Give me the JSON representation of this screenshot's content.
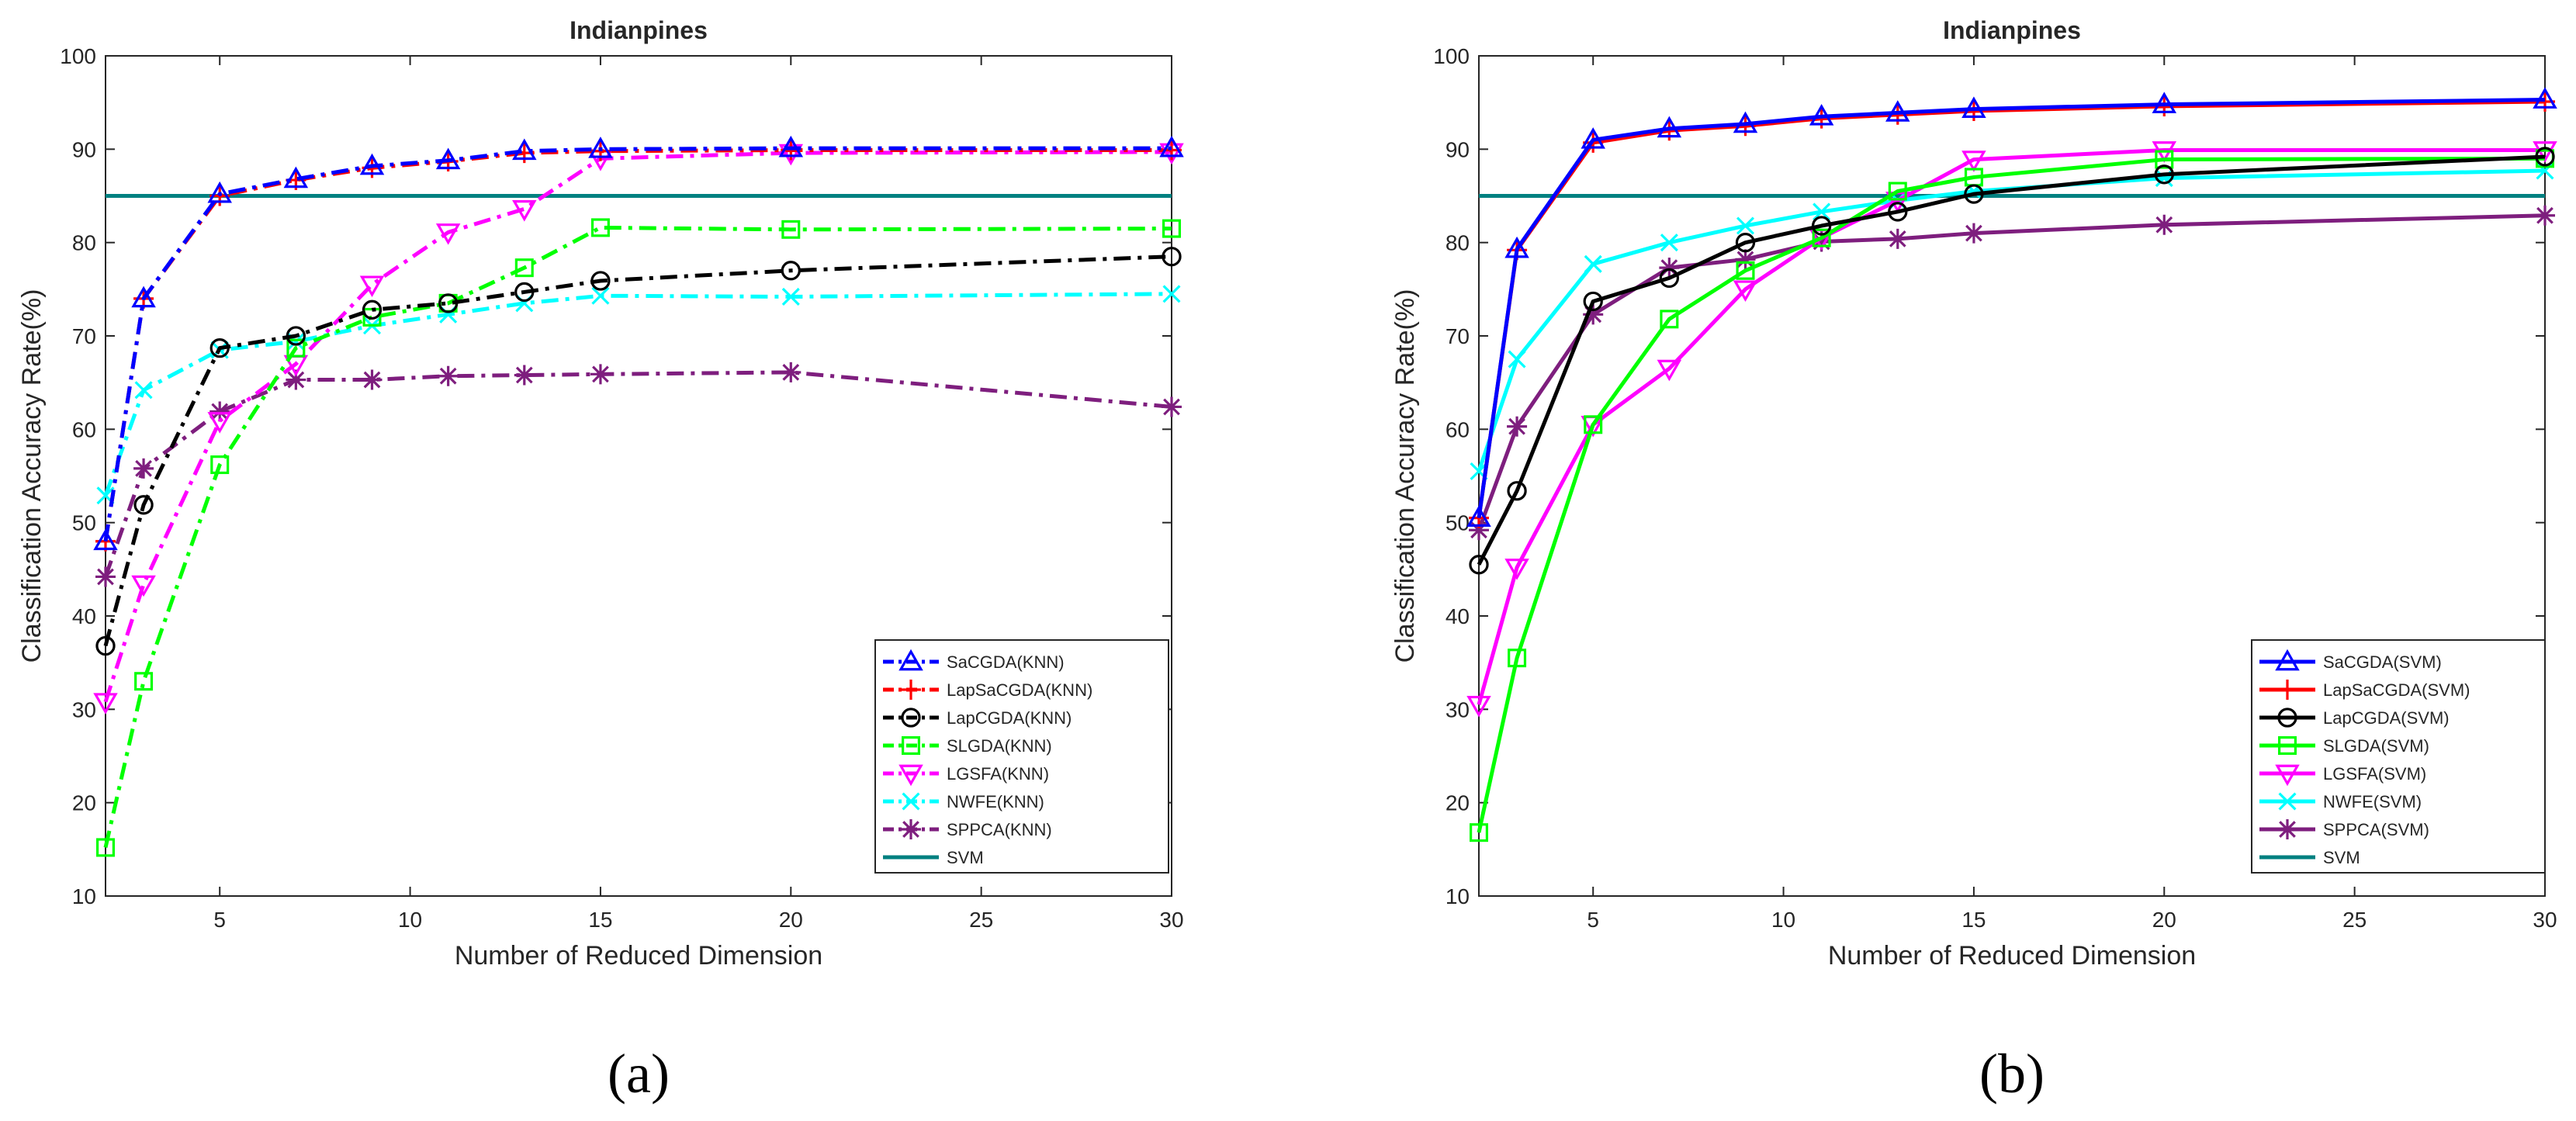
{
  "chart_data": [
    {
      "type": "line",
      "panel_label": "(a)",
      "title": "Indianpines",
      "xlabel": "Number of Reduced Dimension",
      "ylabel": "Classification Accuracy Rate(%)",
      "xlim": [
        2,
        30
      ],
      "ylim": [
        10,
        100
      ],
      "xticks": [
        5,
        10,
        15,
        20,
        25,
        30
      ],
      "yticks": [
        10,
        20,
        30,
        40,
        50,
        60,
        70,
        80,
        90,
        100
      ],
      "grid": false,
      "legend_position": "bottom-right",
      "series": [
        {
          "name": "SaCGDA(KNN)",
          "color": "#0000ff",
          "marker": "triangle-up",
          "line": "dashdot",
          "x": [
            2,
            3,
            5,
            7,
            9,
            11,
            13,
            15,
            20,
            30
          ],
          "y": [
            48,
            74,
            85.2,
            86.8,
            88.2,
            88.8,
            89.8,
            90,
            90.1,
            90.1
          ]
        },
        {
          "name": "LapSaCGDA(KNN)",
          "color": "#ff0000",
          "marker": "plus",
          "line": "dashdot",
          "x": [
            2,
            3,
            5,
            7,
            9,
            11,
            13,
            15,
            20,
            30
          ],
          "y": [
            48,
            74,
            85,
            86.7,
            88,
            88.7,
            89.6,
            89.8,
            89.9,
            89.9
          ]
        },
        {
          "name": "LapCGDA(KNN)",
          "color": "#000000",
          "marker": "circle",
          "line": "dashdot",
          "x": [
            2,
            3,
            5,
            7,
            9,
            11,
            13,
            15,
            20,
            30
          ],
          "y": [
            36.8,
            51.9,
            68.7,
            70,
            72.8,
            73.5,
            74.7,
            75.9,
            77,
            78.5
          ]
        },
        {
          "name": "SLGDA(KNN)",
          "color": "#00ff00",
          "marker": "square",
          "line": "dashdot",
          "x": [
            2,
            3,
            5,
            7,
            9,
            11,
            13,
            15,
            20,
            30
          ],
          "y": [
            15.2,
            33,
            56.2,
            68.7,
            72,
            73.5,
            77.3,
            81.6,
            81.4,
            81.5
          ]
        },
        {
          "name": "LGSFA(KNN)",
          "color": "#ff00ff",
          "marker": "triangle-down",
          "line": "dashdot",
          "x": [
            2,
            3,
            5,
            7,
            9,
            11,
            13,
            15,
            20,
            30
          ],
          "y": [
            30.8,
            43.4,
            60.9,
            67,
            75.5,
            81.1,
            83.6,
            89,
            89.6,
            89.7
          ]
        },
        {
          "name": "NWFE(KNN)",
          "color": "#00ffff",
          "marker": "x",
          "line": "dashdot",
          "x": [
            2,
            3,
            5,
            7,
            9,
            11,
            13,
            15,
            20,
            30
          ],
          "y": [
            52.9,
            64.2,
            68.5,
            69.4,
            71.1,
            72.3,
            73.5,
            74.3,
            74.2,
            74.5
          ]
        },
        {
          "name": "SPPCA(KNN)",
          "color": "#7e1e7e",
          "marker": "asterisk",
          "line": "dashdot",
          "x": [
            2,
            3,
            5,
            7,
            9,
            11,
            13,
            15,
            20,
            30
          ],
          "y": [
            44.2,
            55.8,
            61.9,
            65.3,
            65.3,
            65.7,
            65.8,
            65.9,
            66.1,
            62.4
          ]
        },
        {
          "name": "SVM",
          "color": "#008080",
          "marker": "none",
          "line": "solid",
          "x": [
            2,
            30
          ],
          "y": [
            85,
            85
          ]
        }
      ]
    },
    {
      "type": "line",
      "panel_label": "(b)",
      "title": "Indianpines",
      "xlabel": "Number of Reduced Dimension",
      "ylabel": "Classification Accuracy Rate(%)",
      "xlim": [
        2,
        30
      ],
      "ylim": [
        10,
        100
      ],
      "xticks": [
        5,
        10,
        15,
        20,
        25,
        30
      ],
      "yticks": [
        10,
        20,
        30,
        40,
        50,
        60,
        70,
        80,
        90,
        100
      ],
      "grid": false,
      "legend_position": "bottom-right",
      "series": [
        {
          "name": "SaCGDA(SVM)",
          "color": "#0000ff",
          "marker": "triangle-up",
          "line": "solid",
          "x": [
            2,
            3,
            5,
            7,
            9,
            11,
            13,
            15,
            20,
            30
          ],
          "y": [
            50.5,
            79.3,
            91,
            92.2,
            92.7,
            93.5,
            93.9,
            94.3,
            94.8,
            95.3
          ]
        },
        {
          "name": "LapSaCGDA(SVM)",
          "color": "#ff0000",
          "marker": "plus",
          "line": "solid",
          "x": [
            2,
            3,
            5,
            7,
            9,
            11,
            13,
            15,
            20,
            30
          ],
          "y": [
            50.5,
            79.2,
            90.7,
            92,
            92.5,
            93.3,
            93.7,
            94.1,
            94.6,
            95.1
          ]
        },
        {
          "name": "LapCGDA(SVM)",
          "color": "#000000",
          "marker": "circle",
          "line": "solid",
          "x": [
            2,
            3,
            5,
            7,
            9,
            11,
            13,
            15,
            20,
            30
          ],
          "y": [
            45.5,
            53.4,
            73.7,
            76.2,
            80,
            81.8,
            83.3,
            85.2,
            87.3,
            89.2
          ]
        },
        {
          "name": "SLGDA(SVM)",
          "color": "#00ff00",
          "marker": "square",
          "line": "solid",
          "x": [
            2,
            3,
            5,
            7,
            9,
            11,
            13,
            15,
            20,
            30
          ],
          "y": [
            16.8,
            35.5,
            60.5,
            71.8,
            77,
            80.5,
            85.5,
            87,
            88.9,
            89
          ]
        },
        {
          "name": "LGSFA(SVM)",
          "color": "#ff00ff",
          "marker": "triangle-down",
          "line": "solid",
          "x": [
            2,
            3,
            5,
            7,
            9,
            11,
            13,
            15,
            20,
            30
          ],
          "y": [
            30.5,
            45.2,
            60.5,
            66.5,
            75,
            80.5,
            84.5,
            88.9,
            89.9,
            89.9
          ]
        },
        {
          "name": "NWFE(SVM)",
          "color": "#00ffff",
          "marker": "x",
          "line": "solid",
          "x": [
            2,
            3,
            5,
            7,
            9,
            11,
            13,
            15,
            20,
            30
          ],
          "y": [
            55.5,
            67.5,
            77.7,
            80,
            81.8,
            83.3,
            84.5,
            85.5,
            86.9,
            87.7
          ]
        },
        {
          "name": "SPPCA(SVM)",
          "color": "#7e1e7e",
          "marker": "asterisk",
          "line": "solid",
          "x": [
            2,
            3,
            5,
            7,
            9,
            11,
            13,
            15,
            20,
            30
          ],
          "y": [
            49.2,
            60.3,
            72.3,
            77.3,
            78.2,
            80.1,
            80.4,
            81,
            81.9,
            82.9
          ]
        },
        {
          "name": "SVM",
          "color": "#008080",
          "marker": "none",
          "line": "solid",
          "x": [
            2,
            30
          ],
          "y": [
            85,
            85
          ]
        }
      ]
    }
  ]
}
